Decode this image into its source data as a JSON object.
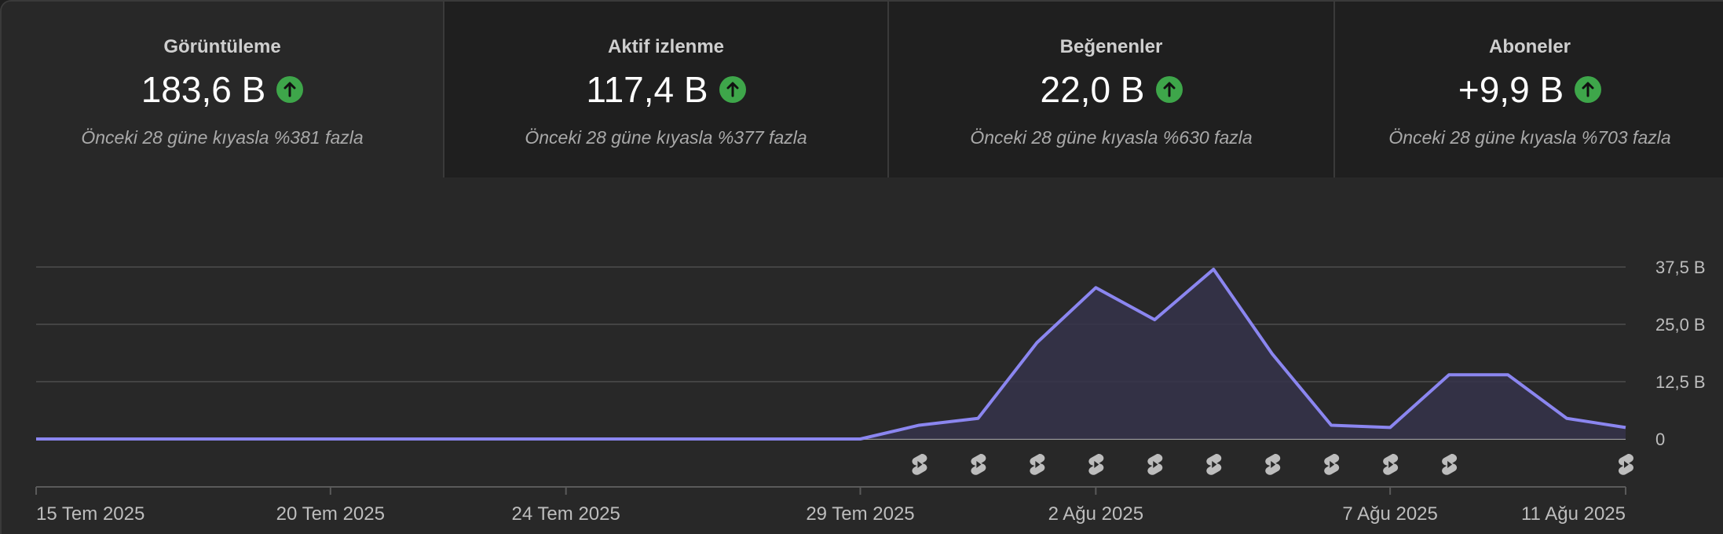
{
  "cards": [
    {
      "title": "Görüntüleme",
      "value": "183,6 B",
      "subtitle": "Önceki 28 güne kıyasla %381 fazla",
      "trend_icon": "arrow-up-circle-icon",
      "selected": true
    },
    {
      "title": "Aktif izlenme",
      "value": "117,4 B",
      "subtitle": "Önceki 28 güne kıyasla %377 fazla",
      "trend_icon": "arrow-up-circle-icon",
      "selected": false
    },
    {
      "title": "Beğenenler",
      "value": "22,0 B",
      "subtitle": "Önceki 28 güne kıyasla %630 fazla",
      "trend_icon": "arrow-up-circle-icon",
      "selected": false
    },
    {
      "title": "Aboneler",
      "value": "+9,9 B",
      "subtitle": "Önceki 28 güne kıyasla %703 fazla",
      "trend_icon": "arrow-up-circle-icon",
      "selected": false
    }
  ],
  "colors": {
    "line": "#8b86f0",
    "area": "#35334a",
    "trend_up": "#3ea64a",
    "grid": "#444444",
    "marker": "#bdbdbd"
  },
  "chart_data": {
    "type": "area",
    "x": [
      "15 Tem 2025",
      "16 Tem 2025",
      "17 Tem 2025",
      "18 Tem 2025",
      "19 Tem 2025",
      "20 Tem 2025",
      "21 Tem 2025",
      "22 Tem 2025",
      "23 Tem 2025",
      "24 Tem 2025",
      "25 Tem 2025",
      "26 Tem 2025",
      "27 Tem 2025",
      "28 Tem 2025",
      "29 Tem 2025",
      "30 Tem 2025",
      "31 Tem 2025",
      "1 Ağu 2025",
      "2 Ağu 2025",
      "3 Ağu 2025",
      "4 Ağu 2025",
      "5 Ağu 2025",
      "6 Ağu 2025",
      "7 Ağu 2025",
      "8 Ağu 2025",
      "9 Ağu 2025",
      "10 Ağu 2025",
      "11 Ağu 2025"
    ],
    "values": [
      0,
      0,
      0,
      0,
      0,
      0,
      0,
      0,
      0,
      0,
      0,
      0,
      0,
      0,
      0,
      3,
      4.5,
      21,
      33,
      26,
      37,
      18.5,
      3,
      2.5,
      14,
      14,
      4.5,
      2.5
    ],
    "x_tick_labels": [
      {
        "label": "15 Tem 2025",
        "index": 0
      },
      {
        "label": "20 Tem 2025",
        "index": 5
      },
      {
        "label": "24 Tem 2025",
        "index": 9
      },
      {
        "label": "29 Tem 2025",
        "index": 14
      },
      {
        "label": "2 Ağu 2025",
        "index": 18
      },
      {
        "label": "7 Ağu 2025",
        "index": 23
      },
      {
        "label": "11 Ağu 2025",
        "index": 27
      }
    ],
    "y_ticks": [
      {
        "label": "0",
        "value": 0
      },
      {
        "label": "12,5 B",
        "value": 12.5
      },
      {
        "label": "25,0 B",
        "value": 25
      },
      {
        "label": "37,5 B",
        "value": 37.5
      }
    ],
    "ylim": [
      0,
      37.5
    ],
    "grid": true,
    "shorts_markers": [
      15,
      16,
      17,
      18,
      19,
      20,
      21,
      22,
      23,
      24,
      27
    ],
    "marker_icon": "shorts-icon"
  }
}
